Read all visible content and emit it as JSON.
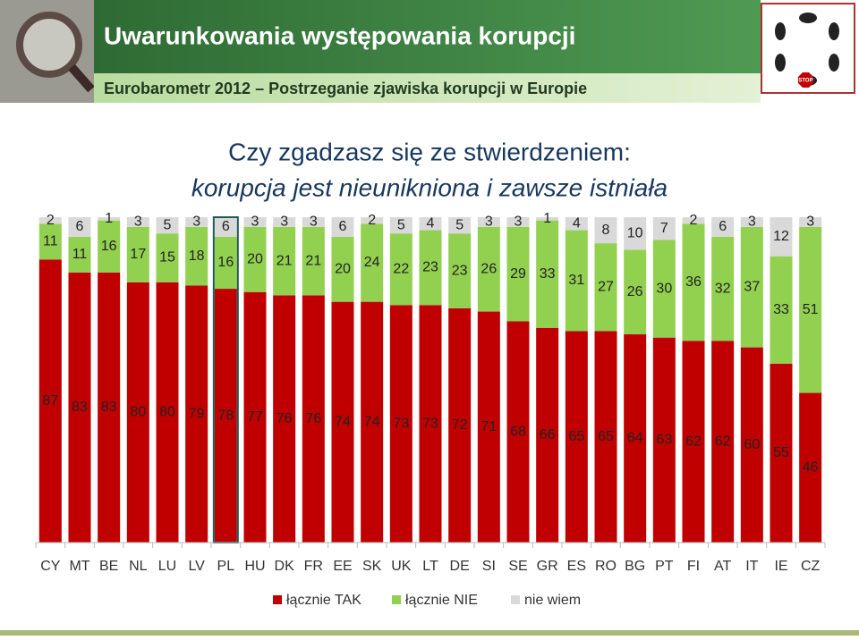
{
  "header": {
    "title": "Uwarunkowania występowania korupcji",
    "subtitle": "Eurobarometr 2012 – Postrzeganie zjawiska korupcji w Europie",
    "logo_text": "STOP"
  },
  "chart_data": {
    "type": "stacked_bar",
    "title": "Czy zgadzasz się ze stwierdzeniem:",
    "subtitle": "korupcja jest nieunikniona i zawsze istniała",
    "categories": [
      "CY",
      "MT",
      "BE",
      "NL",
      "LU",
      "LV",
      "PL",
      "HU",
      "DK",
      "FR",
      "EE",
      "SK",
      "UK",
      "LT",
      "DE",
      "SI",
      "SE",
      "GR",
      "ES",
      "RO",
      "BG",
      "PT",
      "FI",
      "AT",
      "IT",
      "IE",
      "CZ"
    ],
    "series": [
      {
        "name": "łącznie TAK",
        "color": "#c00000",
        "values": [
          87,
          83,
          83,
          80,
          80,
          79,
          78,
          77,
          76,
          76,
          74,
          74,
          73,
          73,
          72,
          71,
          68,
          66,
          65,
          65,
          64,
          63,
          62,
          62,
          60,
          55,
          46
        ]
      },
      {
        "name": "łącznie NIE",
        "color": "#92d050",
        "values": [
          11,
          11,
          16,
          17,
          15,
          18,
          16,
          20,
          21,
          21,
          20,
          24,
          22,
          23,
          23,
          26,
          29,
          33,
          31,
          27,
          26,
          30,
          36,
          32,
          37,
          33,
          51
        ]
      },
      {
        "name": "nie wiem",
        "color": "#d9d9d9",
        "values": [
          2,
          6,
          1,
          3,
          5,
          3,
          6,
          3,
          3,
          3,
          6,
          2,
          5,
          4,
          5,
          3,
          3,
          1,
          4,
          8,
          10,
          7,
          2,
          6,
          3,
          12,
          3
        ]
      }
    ],
    "ylim": [
      0,
      100
    ],
    "highlight_category": "PL",
    "legend": "bottom"
  }
}
